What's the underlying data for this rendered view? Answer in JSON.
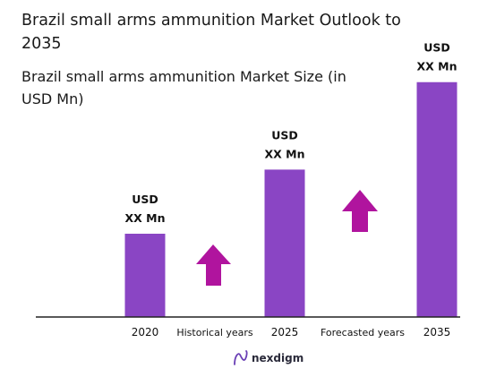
{
  "chart_data": {
    "type": "bar",
    "title_lines": [
      "Brazil small arms ammunition Market Outlook to",
      "2035"
    ],
    "subtitle_lines": [
      "Brazil small arms ammunition Market Size (in",
      "USD Mn)"
    ],
    "categories": [
      "2020",
      "2025",
      "2035"
    ],
    "values": [
      1.0,
      1.77,
      2.82
    ],
    "value_labels": [
      [
        "USD",
        "XX Mn"
      ],
      [
        "USD",
        "XX Mn"
      ],
      [
        "USD",
        "XX Mn"
      ]
    ],
    "period_labels": [
      "Historical years",
      "Forecasted years"
    ],
    "bar_color": "#8a45c4",
    "arrow_color": "#b0149e",
    "axis_color": "#222222",
    "grid": false,
    "legend": "none"
  },
  "branding": {
    "name": "nexdigm",
    "icon": "nexdigm-logo-icon",
    "color": "#6a3fb5"
  }
}
